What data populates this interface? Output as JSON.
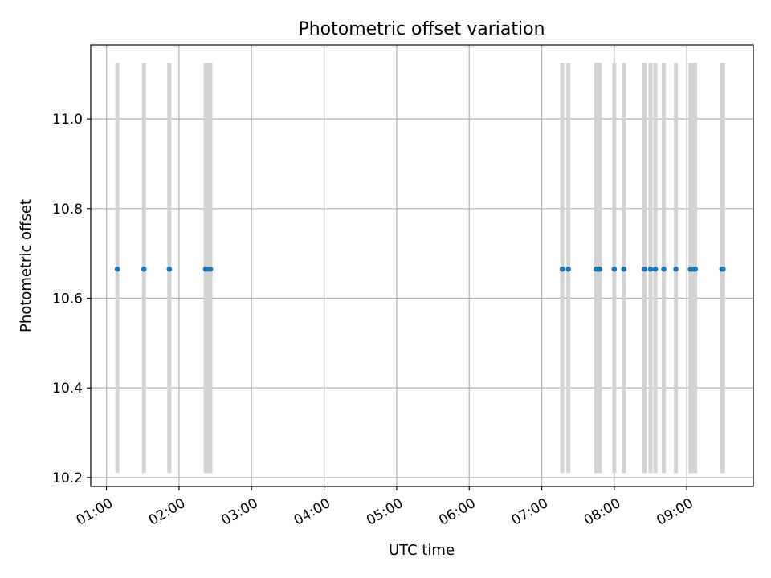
{
  "chart_data": {
    "type": "scatter",
    "title": "Photometric offset variation",
    "xlabel": "UTC time",
    "ylabel": "Photometric offset",
    "xlim": [
      "00:47",
      "09:55"
    ],
    "ylim": [
      10.18,
      11.165
    ],
    "xticks": [
      "01:00",
      "02:00",
      "03:00",
      "04:00",
      "05:00",
      "06:00",
      "07:00",
      "08:00",
      "09:00"
    ],
    "yticks": [
      "10.2",
      "10.4",
      "10.6",
      "10.8",
      "11.0"
    ],
    "grid": true,
    "series": [
      {
        "points": [
          {
            "x": "01:09",
            "y": 10.665,
            "ylow": 10.21,
            "yhigh": 11.125
          },
          {
            "x": "01:31",
            "y": 10.665,
            "ylow": 10.21,
            "yhigh": 11.125
          },
          {
            "x": "01:52",
            "y": 10.665,
            "ylow": 10.21,
            "yhigh": 11.125
          },
          {
            "x": "02:22",
            "y": 10.665,
            "ylow": 10.21,
            "yhigh": 11.125
          },
          {
            "x": "02:24",
            "y": 10.665,
            "ylow": 10.21,
            "yhigh": 11.125
          },
          {
            "x": "02:26",
            "y": 10.665,
            "ylow": 10.21,
            "yhigh": 11.125
          },
          {
            "x": "07:17",
            "y": 10.665,
            "ylow": 10.21,
            "yhigh": 11.125
          },
          {
            "x": "07:22",
            "y": 10.665,
            "ylow": 10.21,
            "yhigh": 11.125
          },
          {
            "x": "07:45",
            "y": 10.665,
            "ylow": 10.21,
            "yhigh": 11.125
          },
          {
            "x": "07:47",
            "y": 10.665,
            "ylow": 10.21,
            "yhigh": 11.125
          },
          {
            "x": "07:48",
            "y": 10.665,
            "ylow": 10.21,
            "yhigh": 11.125
          },
          {
            "x": "08:00",
            "y": 10.665,
            "ylow": 10.21,
            "yhigh": 11.125
          },
          {
            "x": "08:08",
            "y": 10.665,
            "ylow": 10.21,
            "yhigh": 11.125
          },
          {
            "x": "08:25",
            "y": 10.665,
            "ylow": 10.21,
            "yhigh": 11.125
          },
          {
            "x": "08:30",
            "y": 10.665,
            "ylow": 10.21,
            "yhigh": 11.125
          },
          {
            "x": "08:34",
            "y": 10.665,
            "ylow": 10.21,
            "yhigh": 11.125
          },
          {
            "x": "08:41",
            "y": 10.665,
            "ylow": 10.21,
            "yhigh": 11.125
          },
          {
            "x": "08:51",
            "y": 10.665,
            "ylow": 10.21,
            "yhigh": 11.125
          },
          {
            "x": "09:03",
            "y": 10.665,
            "ylow": 10.21,
            "yhigh": 11.125
          },
          {
            "x": "09:05",
            "y": 10.665,
            "ylow": 10.21,
            "yhigh": 11.125
          },
          {
            "x": "09:07",
            "y": 10.665,
            "ylow": 10.21,
            "yhigh": 11.125
          },
          {
            "x": "09:29",
            "y": 10.665,
            "ylow": 10.21,
            "yhigh": 11.125
          },
          {
            "x": "09:30",
            "y": 10.665,
            "ylow": 10.21,
            "yhigh": 11.125
          }
        ]
      }
    ],
    "colors": {
      "point": "#1f77b4",
      "errorbar": "#d3d3d3",
      "grid": "#b0b0b0"
    }
  }
}
